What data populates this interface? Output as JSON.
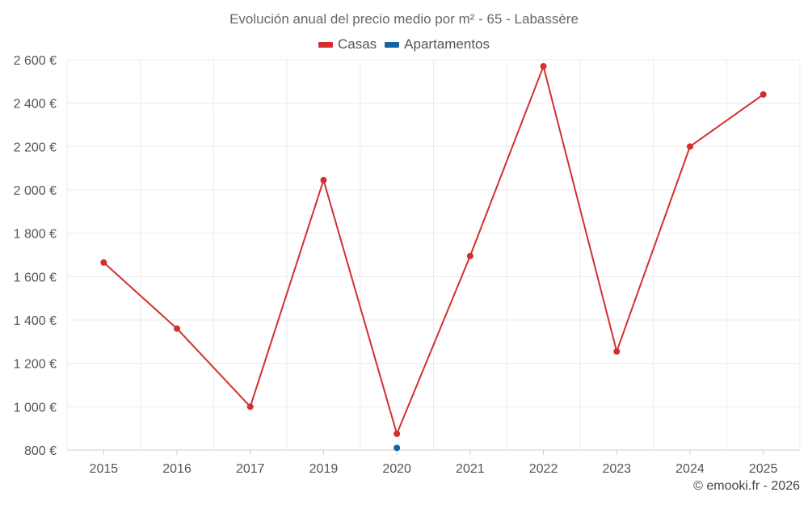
{
  "chart_data": {
    "type": "line",
    "title": "Evolución anual del precio medio por m² - 65 - Labassère",
    "categories": [
      "2015",
      "2016",
      "2017",
      "2019",
      "2020",
      "2021",
      "2022",
      "2023",
      "2024",
      "2025"
    ],
    "series": [
      {
        "name": "Casas",
        "color": "#d32f2f",
        "values": [
          1665,
          1360,
          1000,
          2045,
          875,
          1695,
          2570,
          1255,
          2200,
          2440
        ]
      },
      {
        "name": "Apartamentos",
        "color": "#1565a0",
        "values": [
          null,
          null,
          null,
          null,
          810,
          null,
          null,
          null,
          null,
          null
        ]
      }
    ],
    "yticks": [
      "800 €",
      "1 000 €",
      "1 200 €",
      "1 400 €",
      "1 600 €",
      "1 800 €",
      "2 000 €",
      "2 200 €",
      "2 400 €",
      "2 600 €"
    ],
    "ylim": [
      800,
      2600
    ],
    "xlabel": "",
    "ylabel": "",
    "grid": true,
    "legend_position": "top-center"
  },
  "credit": "© emooki.fr - 2026"
}
